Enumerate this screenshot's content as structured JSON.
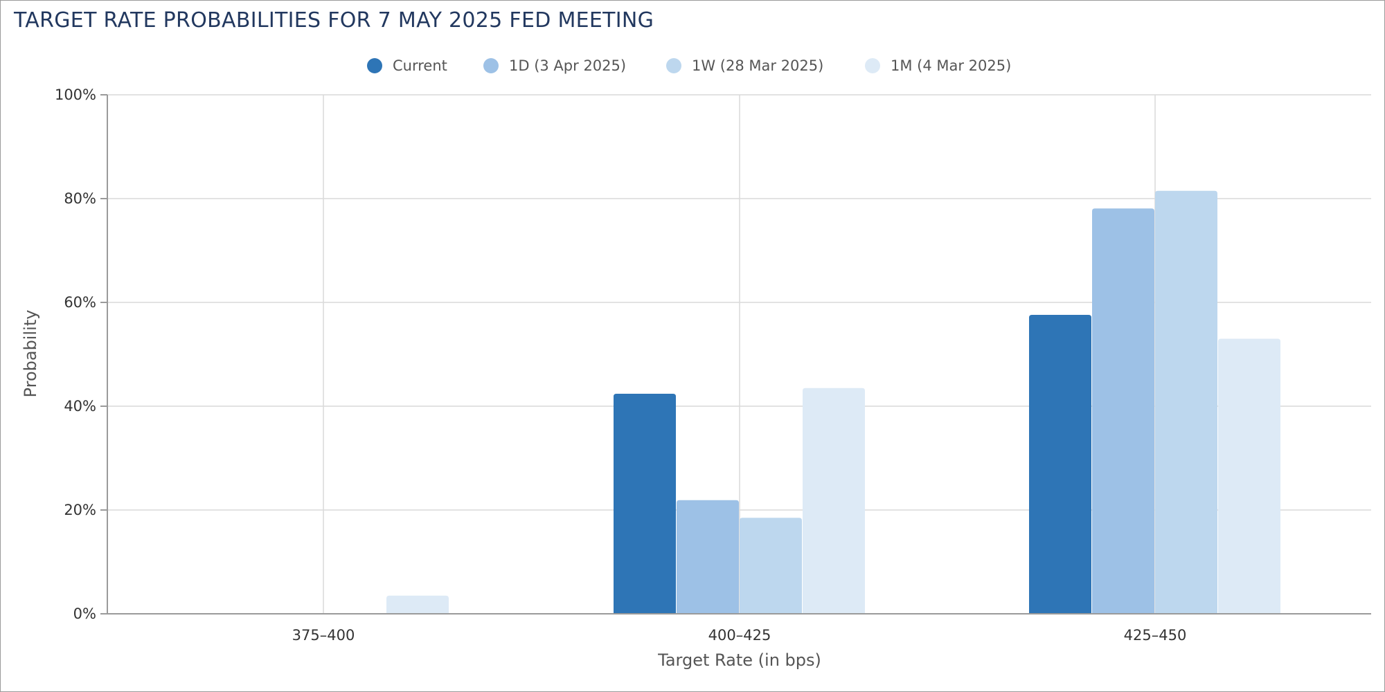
{
  "chart_data": {
    "type": "bar",
    "title": "TARGET RATE PROBABILITIES FOR 7 MAY 2025 FED MEETING",
    "xlabel": "Target Rate (in bps)",
    "ylabel": "Probability",
    "categories": [
      "375-400",
      "400-425",
      "425-450"
    ],
    "series": [
      {
        "name": "Current",
        "color": "#2e75b6",
        "values": [
          0,
          42.4,
          57.6
        ]
      },
      {
        "name": "1D (3 Apr 2025)",
        "color": "#9dc1e6",
        "values": [
          0,
          21.9,
          78.1
        ]
      },
      {
        "name": "1W (28 Mar 2025)",
        "color": "#bdd7ee",
        "values": [
          0,
          18.5,
          81.5
        ]
      },
      {
        "name": "1M (4 Mar 2025)",
        "color": "#ddeaf6",
        "values": [
          3.5,
          43.5,
          53.0
        ]
      }
    ],
    "ylim": [
      0,
      100
    ],
    "yticks": [
      "0%",
      "20%",
      "40%",
      "60%",
      "80%",
      "100%"
    ],
    "ytick_values": [
      0,
      20,
      40,
      60,
      80,
      100
    ],
    "grid": true,
    "legend_position": "top-center"
  }
}
